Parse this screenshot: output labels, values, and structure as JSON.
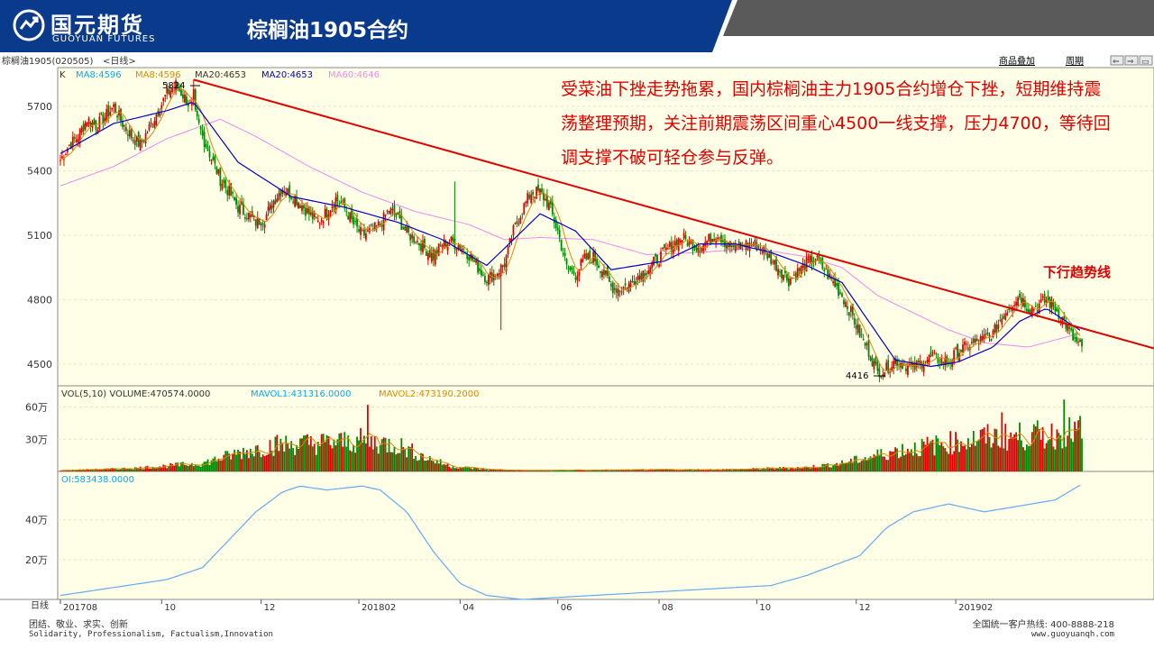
{
  "header": {
    "logo_cn": "国元期货",
    "logo_en": "GUOYUAN FUTURES",
    "title": "棕榈油1905合约",
    "bg_color": "#0a3a8c",
    "logo_icon": "guoyuan-logo-icon"
  },
  "terminal": {
    "contract": "棕榈油1905(020505)",
    "period_tag": "<日线>",
    "buttons": [
      "商品叠加",
      "周期"
    ],
    "period_label": "日线"
  },
  "annotation": "受菜油下挫走势拖累，国内棕榈油主力1905合约增仓下挫，短期维持震荡整理预期，关注前期震荡区间重心4500一线支撑，压力4700，等待回调支撑不破可轻仓参与反弹。",
  "trend_label": "下行趋势线",
  "footer": {
    "slogan_cn": "团结、敬业、求实、创新",
    "slogan_en": "Solidarity, Professionalism, Factualism,Innovation",
    "hotline": "全国统一客户热线: 400-8888-218",
    "url": "www.guoyuanqh.com"
  },
  "colors": {
    "up": "#e00000",
    "down": "#008800",
    "ma5": "#999999",
    "ma8": "#e08800",
    "ma20": "#0000cc",
    "ma60": "#ee88ee",
    "vol": "#e00000",
    "oi": "#66aaee",
    "trend": "#e00000",
    "panel_bg": "#ffffe8",
    "grid": "#ece4c4"
  },
  "chart_data": [
    {
      "type": "candlestick",
      "legend": {
        "k": "K",
        "ma8_a": "MA8:4596",
        "ma8_b": "MA8:4596",
        "ma20_a": "MA20:4653",
        "ma20_b": "MA20:4653",
        "ma60": "MA60:4646"
      },
      "ylim": [
        4400,
        5880
      ],
      "yticks": [
        4500,
        4800,
        5100,
        5400,
        5700
      ],
      "xticks": [
        "201708",
        "10",
        "12",
        "201802",
        "04",
        "06",
        "08",
        "10",
        "12",
        "201902"
      ],
      "high_label": "5824",
      "low_label": "4416",
      "close_series": [
        [
          0,
          5450
        ],
        [
          5,
          5520
        ],
        [
          10,
          5560
        ],
        [
          15,
          5640
        ],
        [
          20,
          5610
        ],
        [
          25,
          5650
        ],
        [
          30,
          5700
        ],
        [
          35,
          5620
        ],
        [
          40,
          5560
        ],
        [
          45,
          5520
        ],
        [
          50,
          5600
        ],
        [
          55,
          5680
        ],
        [
          60,
          5760
        ],
        [
          65,
          5800
        ],
        [
          70,
          5740
        ],
        [
          75,
          5680
        ],
        [
          80,
          5560
        ],
        [
          85,
          5460
        ],
        [
          90,
          5360
        ],
        [
          95,
          5300
        ],
        [
          100,
          5230
        ],
        [
          105,
          5200
        ],
        [
          110,
          5160
        ],
        [
          115,
          5180
        ],
        [
          120,
          5260
        ],
        [
          125,
          5320
        ],
        [
          130,
          5290
        ],
        [
          135,
          5250
        ],
        [
          140,
          5200
        ],
        [
          145,
          5160
        ],
        [
          150,
          5210
        ],
        [
          155,
          5270
        ],
        [
          160,
          5230
        ],
        [
          165,
          5150
        ],
        [
          170,
          5100
        ],
        [
          175,
          5120
        ],
        [
          180,
          5150
        ],
        [
          185,
          5220
        ],
        [
          190,
          5180
        ],
        [
          195,
          5110
        ],
        [
          200,
          5080
        ],
        [
          205,
          5040
        ],
        [
          210,
          5000
        ],
        [
          215,
          5060
        ],
        [
          220,
          5070
        ],
        [
          225,
          5050
        ],
        [
          230,
          5010
        ],
        [
          235,
          4950
        ],
        [
          240,
          4900
        ],
        [
          245,
          4920
        ],
        [
          250,
          4970
        ],
        [
          255,
          5120
        ],
        [
          260,
          5220
        ],
        [
          265,
          5300
        ],
        [
          270,
          5300
        ],
        [
          275,
          5240
        ],
        [
          280,
          5120
        ],
        [
          285,
          4950
        ],
        [
          290,
          4920
        ],
        [
          295,
          4990
        ],
        [
          300,
          5000
        ],
        [
          305,
          4940
        ],
        [
          310,
          4860
        ],
        [
          315,
          4850
        ],
        [
          320,
          4870
        ],
        [
          325,
          4910
        ],
        [
          330,
          4940
        ],
        [
          335,
          4980
        ],
        [
          340,
          5020
        ],
        [
          345,
          5060
        ],
        [
          350,
          5090
        ],
        [
          355,
          5060
        ],
        [
          360,
          5050
        ],
        [
          365,
          5080
        ],
        [
          370,
          5110
        ],
        [
          375,
          5060
        ],
        [
          380,
          5040
        ],
        [
          385,
          5060
        ],
        [
          390,
          5060
        ],
        [
          395,
          5040
        ],
        [
          400,
          4990
        ],
        [
          405,
          4940
        ],
        [
          410,
          4890
        ],
        [
          415,
          4930
        ],
        [
          420,
          4970
        ],
        [
          425,
          4990
        ],
        [
          430,
          4940
        ],
        [
          435,
          4880
        ],
        [
          440,
          4820
        ],
        [
          445,
          4740
        ],
        [
          450,
          4640
        ],
        [
          455,
          4560
        ],
        [
          460,
          4460
        ],
        [
          465,
          4480
        ],
        [
          470,
          4520
        ],
        [
          475,
          4500
        ],
        [
          480,
          4480
        ],
        [
          485,
          4510
        ],
        [
          490,
          4530
        ],
        [
          495,
          4520
        ],
        [
          500,
          4510
        ],
        [
          505,
          4560
        ],
        [
          510,
          4580
        ],
        [
          515,
          4600
        ],
        [
          520,
          4620
        ],
        [
          525,
          4640
        ],
        [
          530,
          4720
        ],
        [
          535,
          4780
        ],
        [
          540,
          4820
        ],
        [
          545,
          4760
        ],
        [
          550,
          4770
        ],
        [
          555,
          4800
        ],
        [
          560,
          4760
        ],
        [
          565,
          4700
        ],
        [
          570,
          4620
        ],
        [
          575,
          4570
        ]
      ],
      "ma20_series": [
        [
          0,
          5480
        ],
        [
          30,
          5620
        ],
        [
          60,
          5680
        ],
        [
          75,
          5720
        ],
        [
          100,
          5440
        ],
        [
          130,
          5280
        ],
        [
          160,
          5230
        ],
        [
          190,
          5160
        ],
        [
          215,
          5080
        ],
        [
          240,
          4960
        ],
        [
          260,
          5120
        ],
        [
          270,
          5200
        ],
        [
          290,
          5120
        ],
        [
          310,
          4940
        ],
        [
          340,
          4980
        ],
        [
          360,
          5060
        ],
        [
          380,
          5060
        ],
        [
          400,
          5020
        ],
        [
          420,
          4960
        ],
        [
          440,
          4880
        ],
        [
          460,
          4640
        ],
        [
          470,
          4520
        ],
        [
          490,
          4490
        ],
        [
          505,
          4510
        ],
        [
          525,
          4580
        ],
        [
          540,
          4700
        ],
        [
          555,
          4760
        ],
        [
          575,
          4653
        ]
      ],
      "ma60_series": [
        [
          0,
          5330
        ],
        [
          30,
          5420
        ],
        [
          60,
          5550
        ],
        [
          90,
          5640
        ],
        [
          110,
          5560
        ],
        [
          140,
          5420
        ],
        [
          170,
          5300
        ],
        [
          200,
          5210
        ],
        [
          230,
          5150
        ],
        [
          250,
          5080
        ],
        [
          270,
          5090
        ],
        [
          300,
          5080
        ],
        [
          330,
          5010
        ],
        [
          360,
          5020
        ],
        [
          390,
          5040
        ],
        [
          420,
          5000
        ],
        [
          440,
          4950
        ],
        [
          460,
          4820
        ],
        [
          480,
          4740
        ],
        [
          500,
          4660
        ],
        [
          520,
          4600
        ],
        [
          545,
          4580
        ],
        [
          575,
          4646
        ]
      ],
      "trend_line": [
        [
          75,
          5824
        ],
        [
          600,
          4610
        ]
      ]
    },
    {
      "type": "bar",
      "legend": {
        "vol": "VOL(5,10) VOLUME:470574.0000",
        "mavol1": "MAVOL1:431316.0000",
        "mavol2": "MAVOL2:473190.2000"
      },
      "ylim": [
        0,
        68
      ],
      "yticks_labels": [
        "60万",
        "30万"
      ],
      "yticks": [
        60,
        30
      ],
      "profile": [
        [
          0,
          1
        ],
        [
          40,
          3
        ],
        [
          80,
          8
        ],
        [
          100,
          18
        ],
        [
          120,
          26
        ],
        [
          150,
          28
        ],
        [
          170,
          30
        ],
        [
          190,
          26
        ],
        [
          205,
          14
        ],
        [
          220,
          5
        ],
        [
          240,
          2
        ],
        [
          260,
          1
        ],
        [
          380,
          2
        ],
        [
          420,
          4
        ],
        [
          440,
          8
        ],
        [
          470,
          20
        ],
        [
          520,
          33
        ],
        [
          560,
          36
        ],
        [
          575,
          40
        ]
      ],
      "spikes": [
        [
          173,
          62
        ],
        [
          530,
          55
        ],
        [
          565,
          67
        ]
      ]
    },
    {
      "type": "line",
      "legend": {
        "oi": "OI:583438.0000"
      },
      "ylim": [
        0,
        58
      ],
      "yticks_labels": [
        "40万",
        "20万"
      ],
      "yticks": [
        40,
        20
      ],
      "series": [
        [
          0,
          2
        ],
        [
          30,
          6
        ],
        [
          60,
          10
        ],
        [
          80,
          16
        ],
        [
          95,
          30
        ],
        [
          110,
          44
        ],
        [
          125,
          54
        ],
        [
          135,
          57
        ],
        [
          150,
          55
        ],
        [
          170,
          57
        ],
        [
          180,
          55
        ],
        [
          195,
          44
        ],
        [
          210,
          24
        ],
        [
          225,
          8
        ],
        [
          240,
          2
        ],
        [
          260,
          0
        ],
        [
          300,
          2
        ],
        [
          360,
          5
        ],
        [
          400,
          7
        ],
        [
          420,
          12
        ],
        [
          450,
          22
        ],
        [
          465,
          36
        ],
        [
          480,
          44
        ],
        [
          500,
          48
        ],
        [
          520,
          44
        ],
        [
          540,
          47
        ],
        [
          560,
          50
        ],
        [
          575,
          58
        ]
      ]
    }
  ]
}
